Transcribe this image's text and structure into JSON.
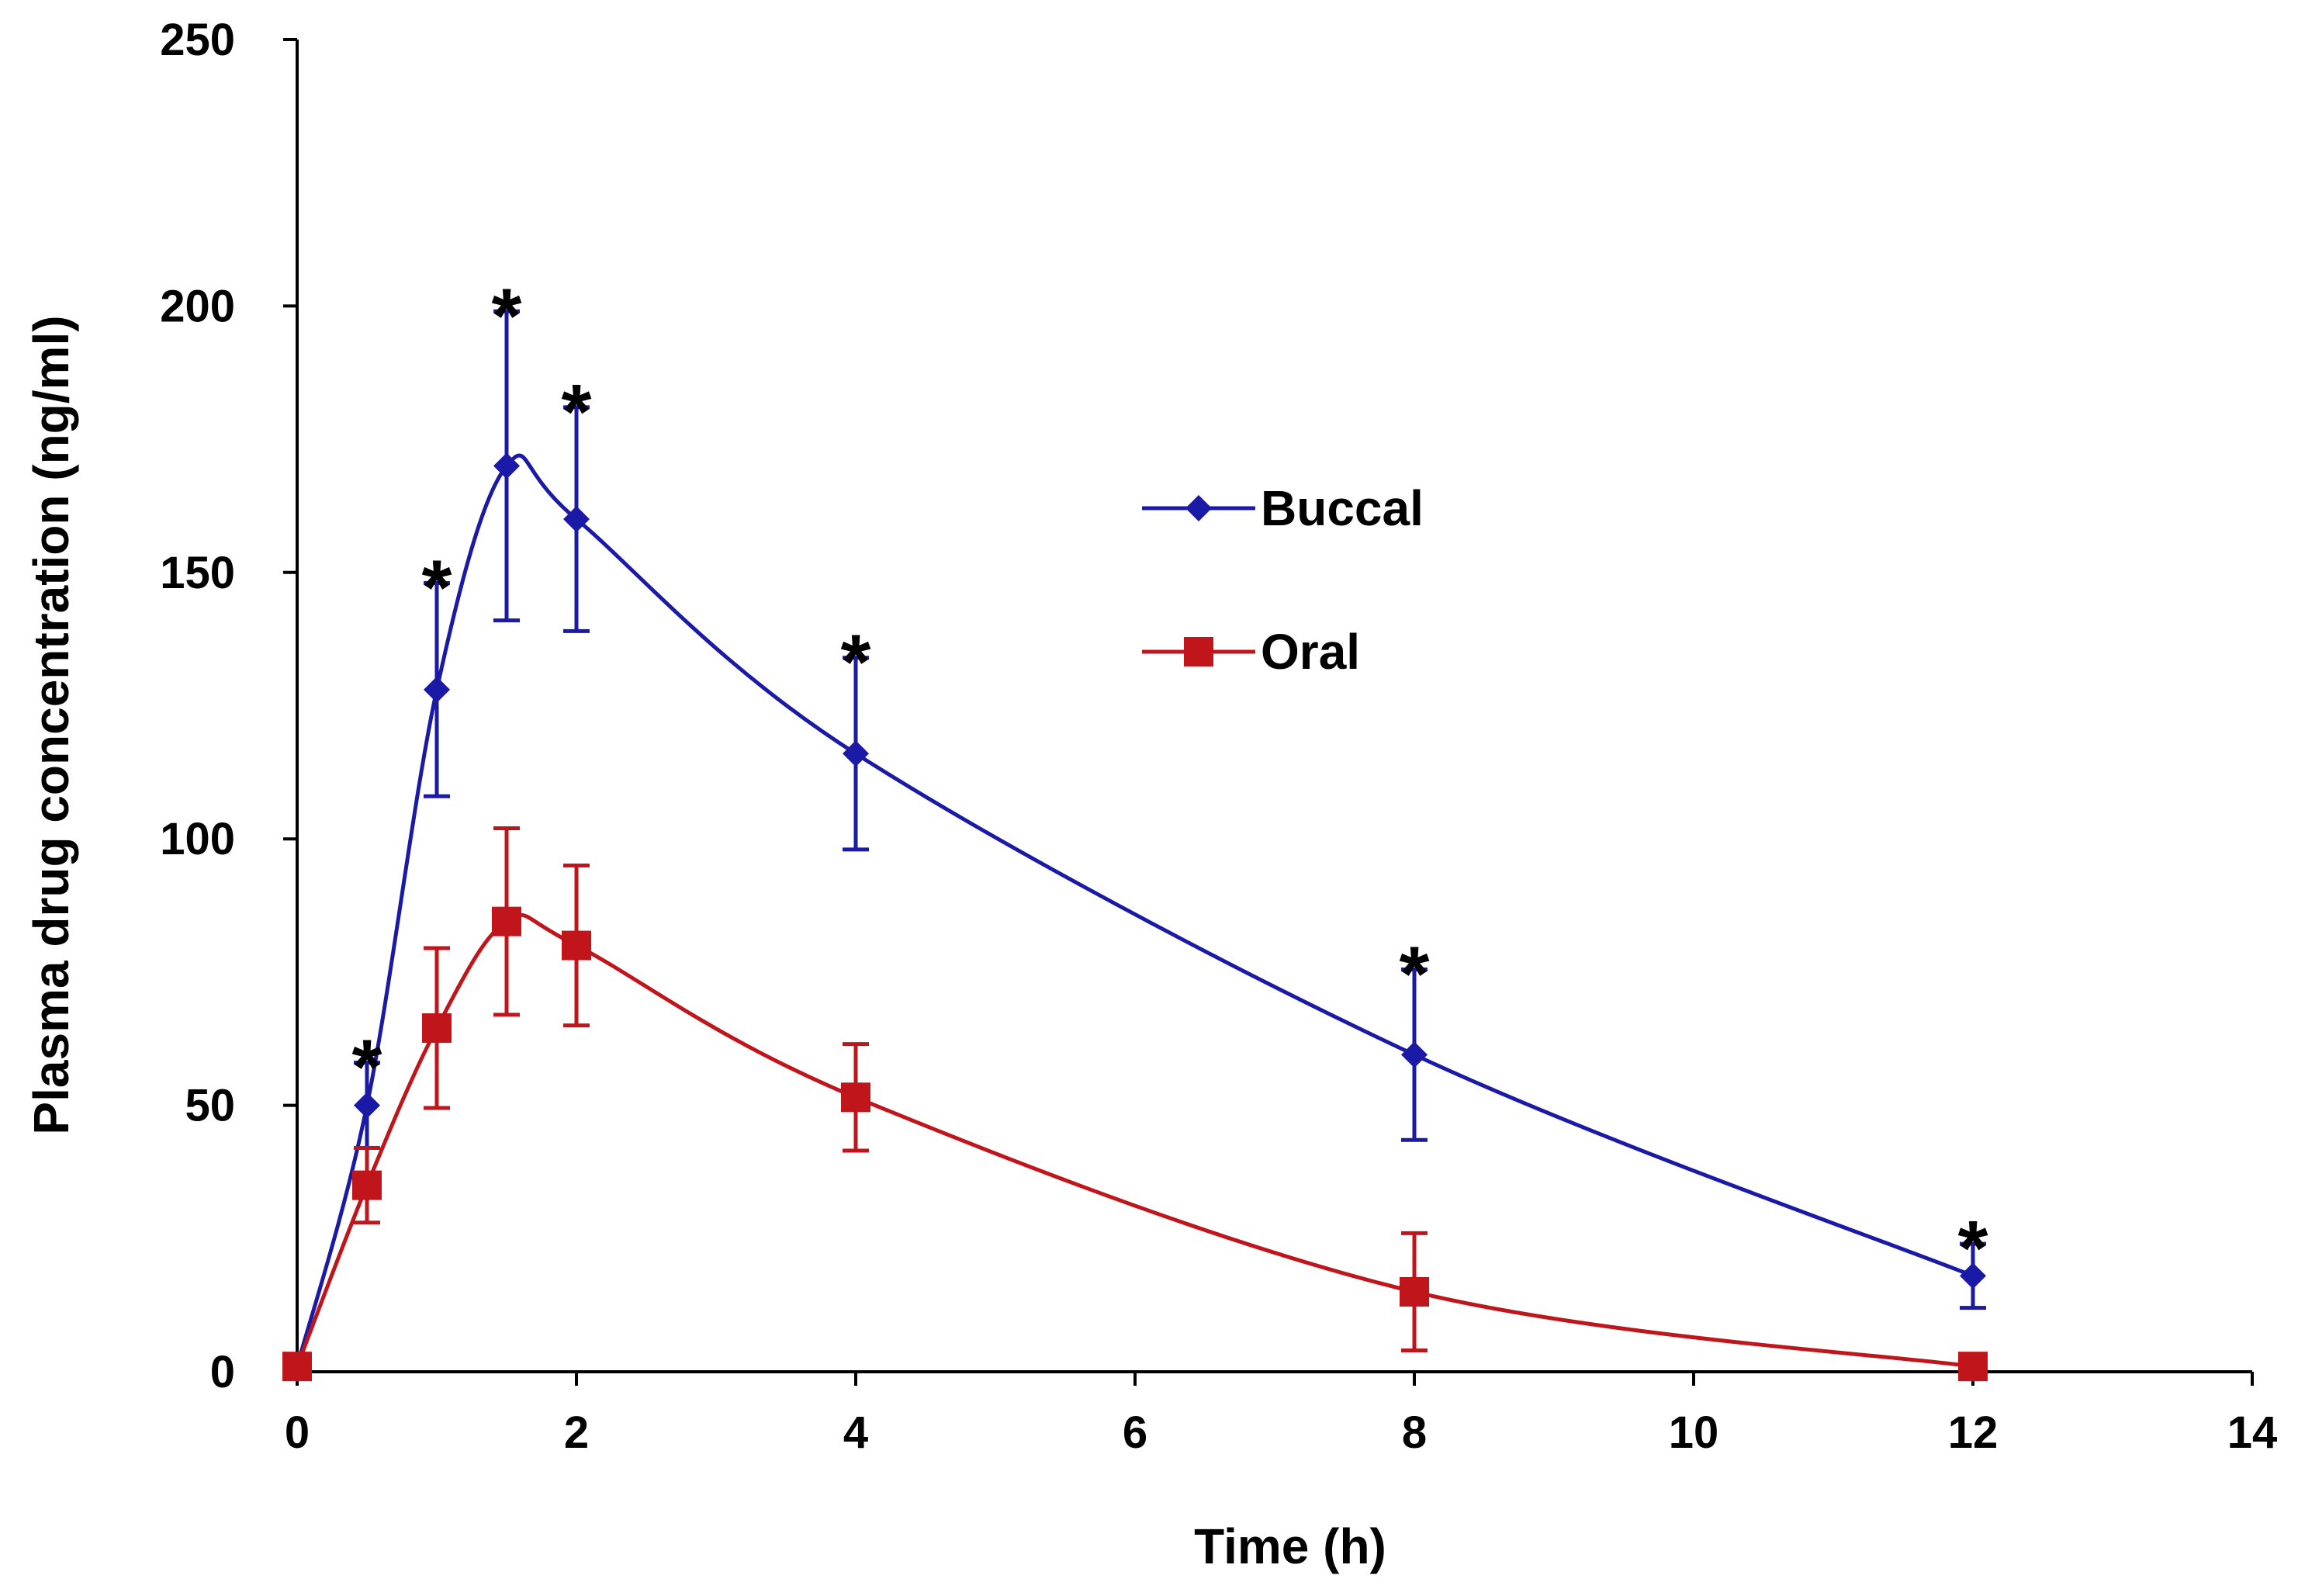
{
  "chart_data": {
    "type": "line",
    "title": "",
    "xlabel": "Time (h)",
    "ylabel": "Plasma drug concentration (ng/ml)",
    "xlim": [
      0,
      14
    ],
    "ylim": [
      0,
      250
    ],
    "xticks": [
      0,
      2,
      4,
      6,
      8,
      10,
      12,
      14
    ],
    "yticks": [
      0,
      50,
      100,
      150,
      200,
      250
    ],
    "x_tick_labels": [
      "0",
      "2",
      "4",
      "6",
      "8",
      "10",
      "12",
      "14"
    ],
    "y_tick_labels": [
      "0",
      "50",
      "100",
      "150",
      "200",
      "250"
    ],
    "grid": false,
    "legend_position": "center-right",
    "significance_marker": "*",
    "series": [
      {
        "name": "Buccal",
        "color": "#1a1aa6",
        "marker": "diamond",
        "x": [
          0,
          0.5,
          1,
          1.5,
          2,
          4,
          8,
          12
        ],
        "values": [
          1,
          50,
          128,
          170,
          160,
          116,
          59.5,
          18
        ],
        "error": [
          0,
          8,
          20,
          29,
          21,
          18,
          16,
          6
        ],
        "significant": [
          false,
          true,
          true,
          true,
          true,
          true,
          true,
          true
        ]
      },
      {
        "name": "Oral",
        "color": "#c0151b",
        "marker": "square",
        "x": [
          0,
          0.5,
          1,
          1.5,
          2,
          4,
          8,
          12
        ],
        "values": [
          1,
          35,
          64.5,
          84.5,
          80,
          51.5,
          15,
          1
        ],
        "error": [
          0,
          7,
          15,
          17.5,
          15,
          10,
          11,
          0
        ],
        "significant": [
          false,
          false,
          false,
          false,
          false,
          false,
          false,
          false
        ]
      }
    ]
  }
}
